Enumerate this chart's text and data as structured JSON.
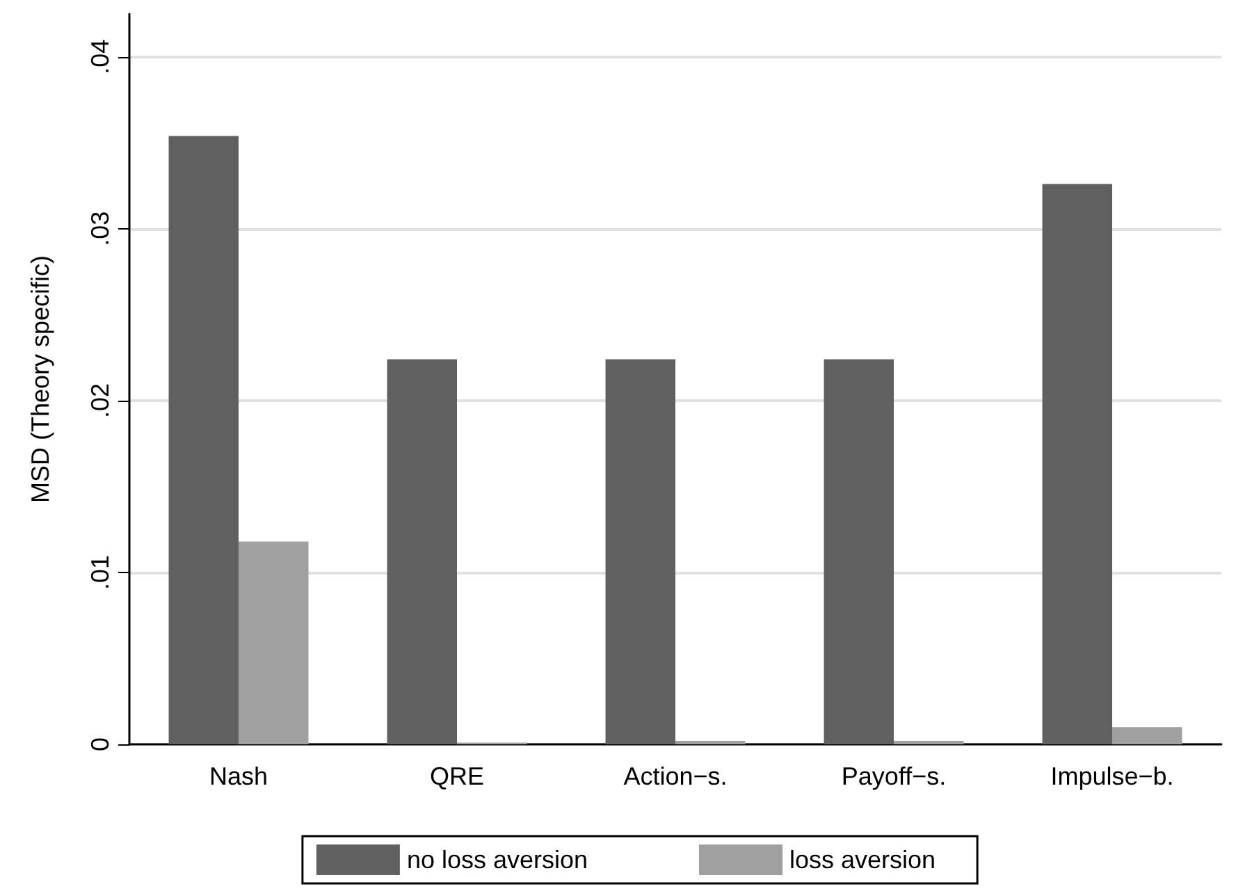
{
  "chart_data": {
    "type": "bar",
    "ylabel": "MSD (Theory specific)",
    "categories": [
      "Nash",
      "QRE",
      "Action−s.",
      "Payoff−s.",
      "Impulse−b."
    ],
    "series": [
      {
        "name": "no loss aversion",
        "color": "#606060",
        "values": [
          0.0354,
          0.0224,
          0.0224,
          0.0224,
          0.0326
        ]
      },
      {
        "name": "loss aversion",
        "color": "#a0a0a0",
        "values": [
          0.0118,
          0.0001,
          0.0002,
          0.0002,
          0.001
        ]
      }
    ],
    "ylim": [
      0,
      0.0425
    ],
    "yticks": [
      {
        "value": 0,
        "label": "0"
      },
      {
        "value": 0.01,
        "label": ".01"
      },
      {
        "value": 0.02,
        "label": ".02"
      },
      {
        "value": 0.03,
        "label": ".03"
      },
      {
        "value": 0.04,
        "label": ".04"
      }
    ],
    "grid": "y",
    "legend": "bottom"
  }
}
